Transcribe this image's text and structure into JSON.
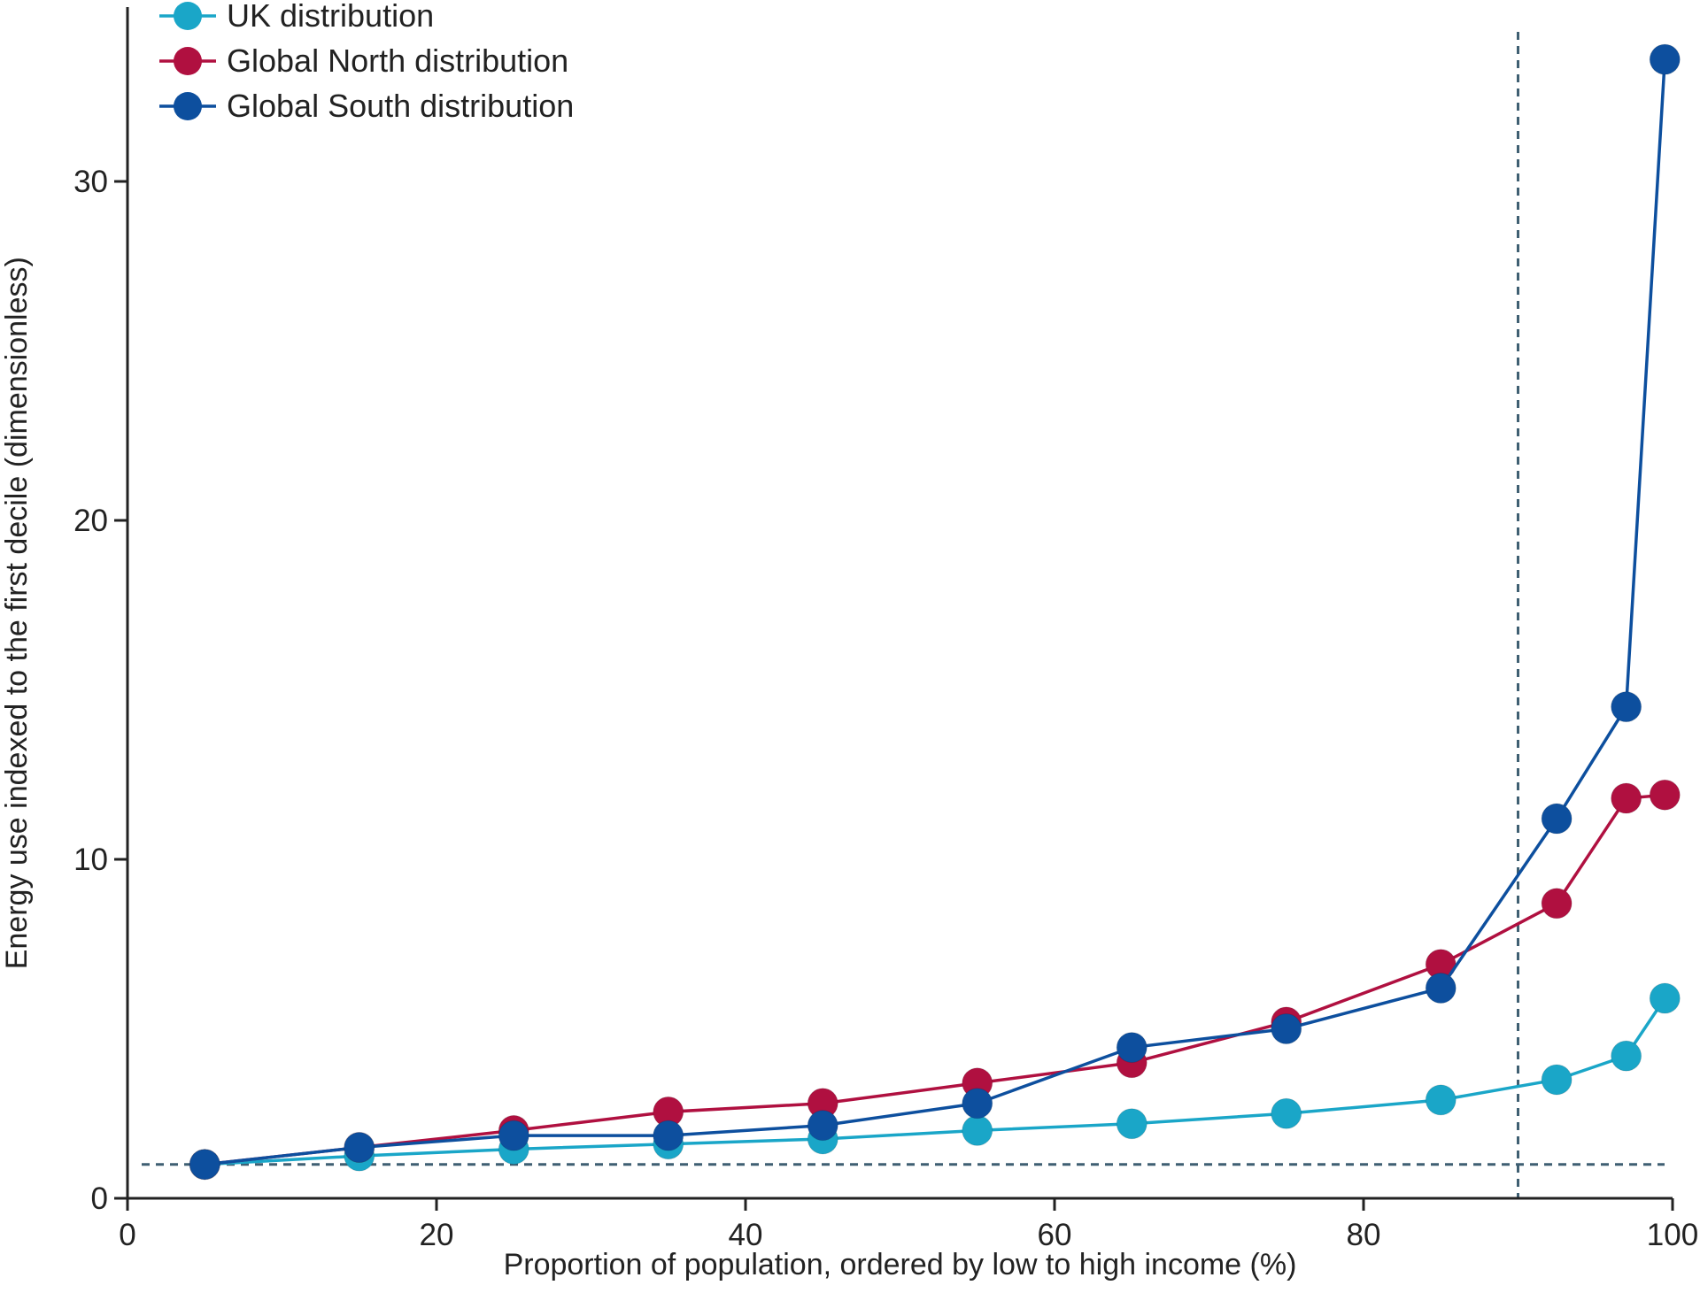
{
  "chart_data": {
    "type": "line",
    "title": "",
    "xlabel": "Proportion of population, ordered by low to high income (%)",
    "ylabel": "Energy use indexed to the first decile (dimensionless)",
    "xlim": [
      0,
      100
    ],
    "ylim": [
      0,
      34
    ],
    "xticks": [
      "0",
      "20",
      "40",
      "60",
      "80",
      "100"
    ],
    "yticks": [
      "0",
      "10",
      "20",
      "30"
    ],
    "grid": false,
    "legend_position": "top-left",
    "reference_lines": [
      {
        "orientation": "horizontal",
        "value": 1,
        "style": "dashed",
        "color": "#3f5f72"
      },
      {
        "orientation": "vertical",
        "value": 90,
        "style": "dashed",
        "color": "#3f5f72"
      }
    ],
    "x": [
      5,
      15,
      25,
      35,
      45,
      55,
      65,
      75,
      85,
      92.5,
      97,
      99.5
    ],
    "series": [
      {
        "name": "UK distribution",
        "color": "#1aa6c8",
        "values": [
          1.0,
          1.25,
          1.45,
          1.6,
          1.75,
          2.0,
          2.2,
          2.5,
          2.9,
          3.5,
          4.2,
          5.9
        ]
      },
      {
        "name": "Global North distribution",
        "color": "#b01040",
        "values": [
          1.0,
          1.5,
          2.0,
          2.55,
          2.8,
          3.4,
          4.0,
          5.2,
          6.9,
          8.7,
          11.8,
          11.9
        ]
      },
      {
        "name": "Global South distribution",
        "color": "#0d4f9e",
        "values": [
          1.0,
          1.5,
          1.85,
          1.85,
          2.15,
          2.8,
          4.45,
          5.0,
          6.2,
          11.2,
          14.5,
          33.6
        ]
      }
    ]
  }
}
